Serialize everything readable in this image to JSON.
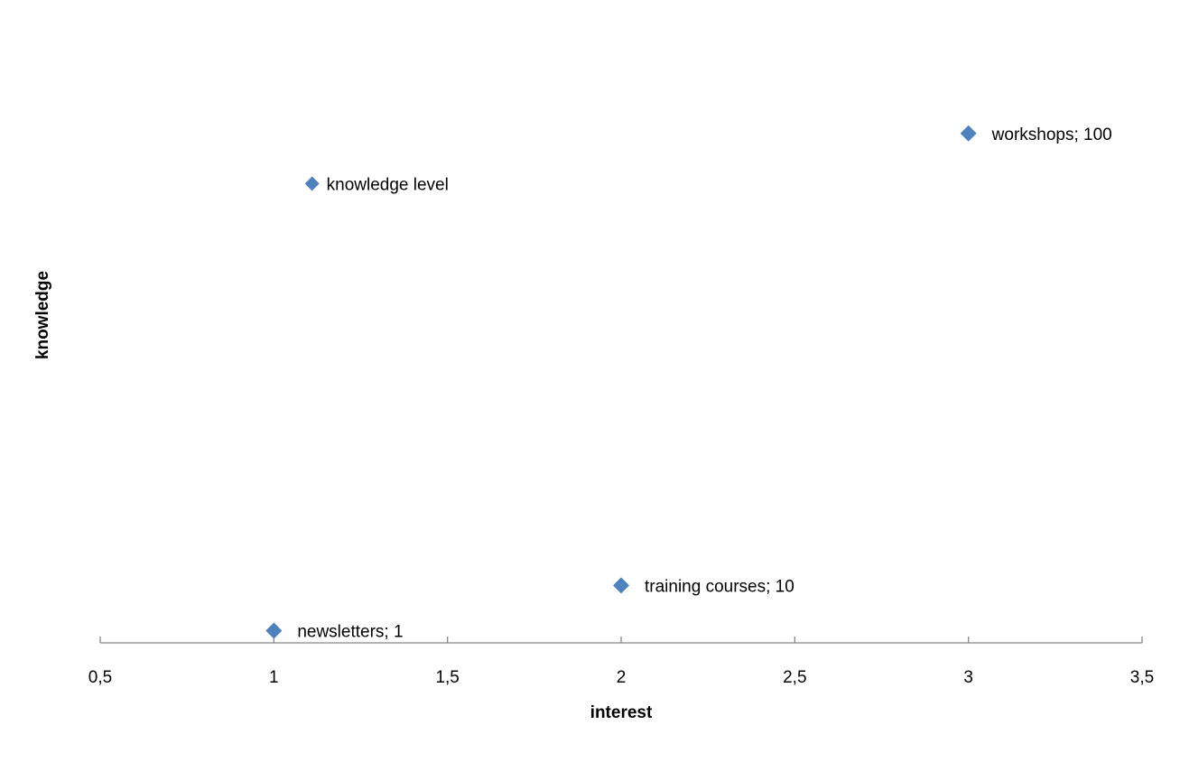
{
  "chart_data": {
    "type": "scatter",
    "title": "",
    "xlabel": "interest",
    "ylabel": "knowledge",
    "xlim": [
      0.5,
      3.5
    ],
    "ylim": [
      0,
      105
    ],
    "x_ticks": [
      "0,5",
      "1",
      "1,5",
      "2",
      "2,5",
      "3",
      "3,5"
    ],
    "x_tick_values": [
      0.5,
      1,
      1.5,
      2,
      2.5,
      3,
      3.5
    ],
    "grid": false,
    "legend": "none",
    "marker": "diamond",
    "marker_color": "#4F81BD",
    "axis_color": "#868686",
    "points": [
      {
        "x": 1,
        "y": 1,
        "label": "newsletters; 1"
      },
      {
        "x": 2,
        "y": 10,
        "label": "training courses; 10"
      },
      {
        "x": 3,
        "y": 100,
        "label": "workshops; 100"
      }
    ],
    "annotation": {
      "x": 1.11,
      "y": 90,
      "label": "knowledge level"
    }
  }
}
